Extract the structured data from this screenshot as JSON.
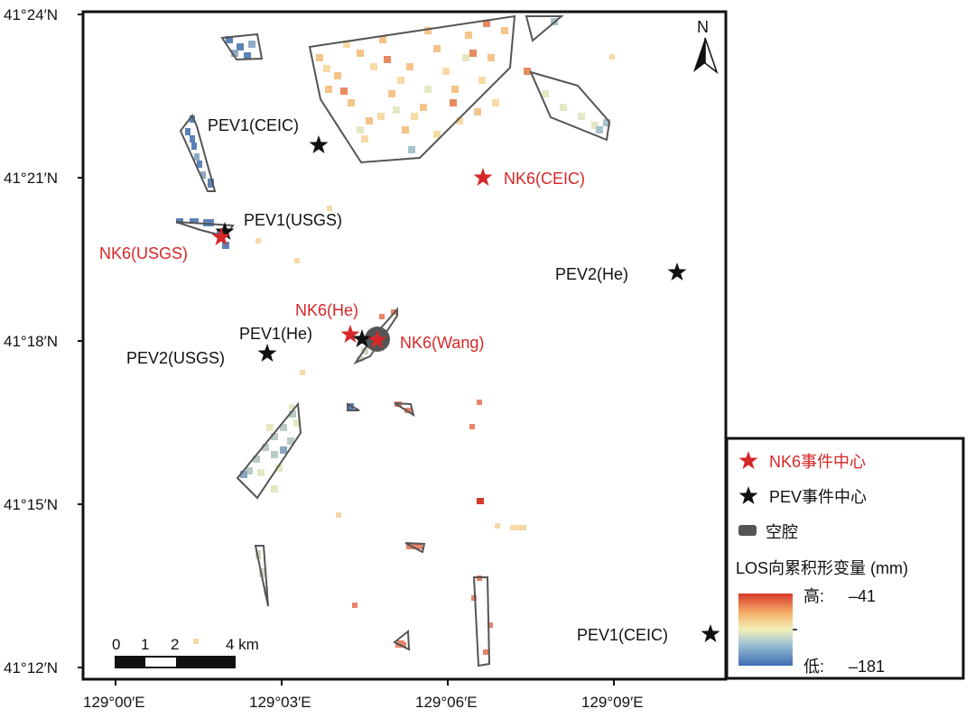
{
  "map": {
    "north_label": "N",
    "lat_ticks": [
      "41°24′N",
      "41°21′N",
      "41°18′N",
      "41°15′N",
      "41°12′N"
    ],
    "lon_ticks": [
      "129°00′E",
      "129°03′E",
      "129°06′E",
      "129°09′E"
    ],
    "scale_bar": {
      "labels": [
        "0",
        "1",
        "2",
        "4 km"
      ]
    },
    "labels": {
      "pev1_ceic_n": "PEV1(CEIC)",
      "nk6_ceic": "NK6(CEIC)",
      "pev1_usgs": "PEV1(USGS)",
      "nk6_usgs": "NK6(USGS)",
      "pev2_he": "PEV2(He)",
      "nk6_he": "NK6(He)",
      "pev1_he": "PEV1(He)",
      "nk6_wang": "NK6(Wang)",
      "pev2_usgs": "PEV2(USGS)",
      "pev1_ceic_s": "PEV1(CEIC)"
    }
  },
  "legend": {
    "nk6_center": "NK6事件中心",
    "pev_center": "PEV事件中心",
    "cavity": "空腔",
    "los_title": "LOS向累积形变量 (mm)",
    "high": "高:",
    "high_val": "–41",
    "low": "低:",
    "low_val": "–181"
  },
  "colors": {
    "nk6": "#d62728",
    "pev": "#111111",
    "cavity": "#555555",
    "ramp": [
      "#3a6db5",
      "#8fb7cf",
      "#f2f0b8",
      "#f5b26b",
      "#d83a2a"
    ]
  }
}
